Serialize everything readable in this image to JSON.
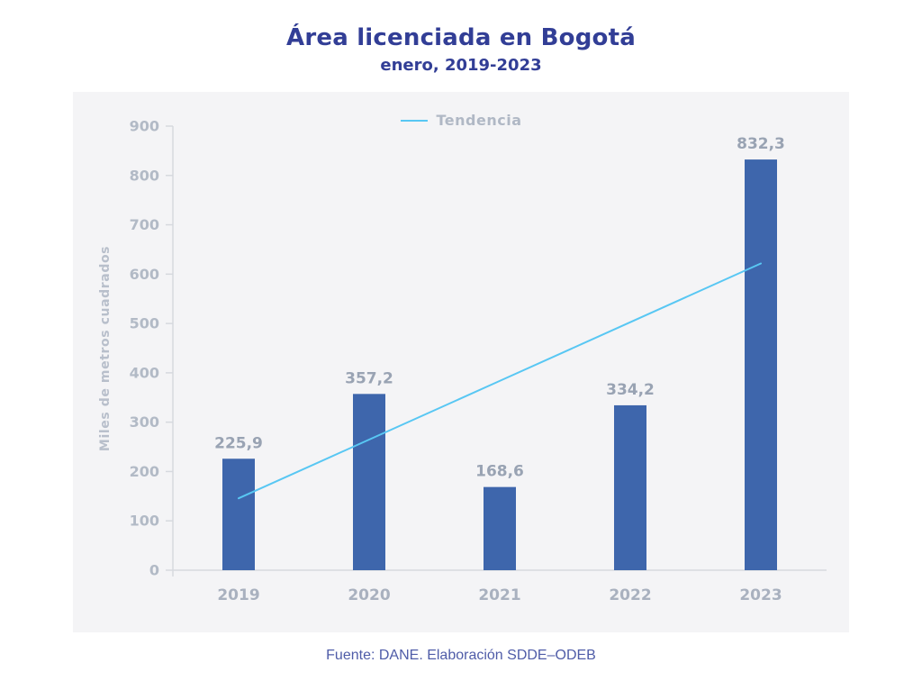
{
  "colors": {
    "title": "#323E96",
    "source": "#4F5CA8",
    "bar": "#3E66AC",
    "trend_line": "#58C7F3",
    "axis_line": "#D6D9DE",
    "tick_label": "#B2BAC6",
    "value_label": "#99A3B3",
    "category_label": "#A9B1BF",
    "ylabel": "#B8BFCB",
    "legend_label": "#B0B8C5",
    "panel_bg": "#F4F4F6"
  },
  "chart_data": {
    "type": "bar",
    "title": "Área licenciada en Bogotá",
    "subtitle": "enero, 2019-2023",
    "categories": [
      "2019",
      "2020",
      "2021",
      "2022",
      "2023"
    ],
    "values": [
      225.9,
      357.2,
      168.6,
      334.2,
      832.3
    ],
    "value_labels": [
      "225,9",
      "357,2",
      "168,6",
      "334,2",
      "832,3"
    ],
    "ylabel": "Miles de metros cuadrados",
    "xlabel": "",
    "ylim": [
      0,
      900
    ],
    "ytick_step": 100,
    "ytick_labels": [
      "0",
      "100",
      "200",
      "300",
      "400",
      "500",
      "600",
      "700",
      "800",
      "900"
    ],
    "grid": false,
    "legend": {
      "label": "Tendencia",
      "position": "top-center"
    },
    "trend": {
      "name": "Tendencia",
      "type": "linear",
      "fitted_values": [
        145.7,
        264.7,
        383.6,
        502.6,
        621.6
      ]
    },
    "source": "Fuente: DANE. Elaboración SDDE–ODEB"
  }
}
